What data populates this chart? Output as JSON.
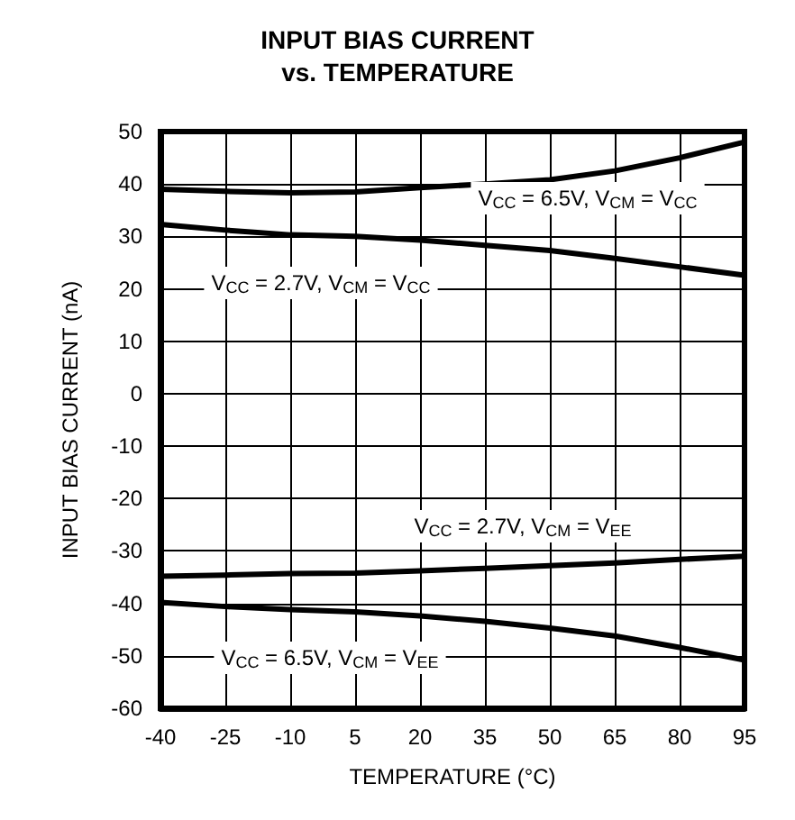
{
  "chart_data": {
    "type": "line",
    "title": "INPUT BIAS CURRENT\nvs. TEMPERATURE",
    "xlabel": "TEMPERATURE (°C)",
    "ylabel": "INPUT BIAS CURRENT (nA)",
    "x": [
      -40,
      -25,
      -10,
      5,
      20,
      35,
      50,
      65,
      80,
      95
    ],
    "series": [
      {
        "name": "V$_{CC}$ = 6.5V, V$_{CM}$ = V$_{CC}$",
        "color": "#000000",
        "values": [
          39,
          38.6,
          38.3,
          38.5,
          39.3,
          40,
          40.8,
          42.5,
          45,
          48
        ]
      },
      {
        "name": "V$_{CC}$ = 2.7V, V$_{CM}$ = V$_{CC}$",
        "color": "#000000",
        "values": [
          32.3,
          31.2,
          30.3,
          30,
          29.3,
          28.3,
          27.3,
          25.8,
          24.2,
          22.6
        ]
      },
      {
        "name": "V$_{CC}$ = 2.7V, V$_{CM}$ = V$_{EE}$",
        "color": "#000000",
        "values": [
          -34.8,
          -34.6,
          -34.3,
          -34.2,
          -33.8,
          -33.3,
          -32.8,
          -32.3,
          -31.6,
          -31
        ]
      },
      {
        "name": "V$_{CC}$ = 6.5V, V$_{CM}$ = V$_{EE}$",
        "color": "#000000",
        "values": [
          -39.8,
          -40.6,
          -41.2,
          -41.6,
          -42.4,
          -43.4,
          -44.7,
          -46.2,
          -48.4,
          -50.8
        ]
      }
    ],
    "xlim": [
      -40,
      95
    ],
    "xticks": [
      -40,
      -25,
      -10,
      5,
      20,
      35,
      50,
      65,
      80,
      95
    ],
    "ylim": [
      -60,
      50
    ],
    "yticks": [
      -60,
      -50,
      -40,
      -30,
      -20,
      -10,
      0,
      10,
      20,
      30,
      40,
      50
    ],
    "grid": true,
    "legend": false,
    "marker": "none",
    "line_style": "solid"
  }
}
